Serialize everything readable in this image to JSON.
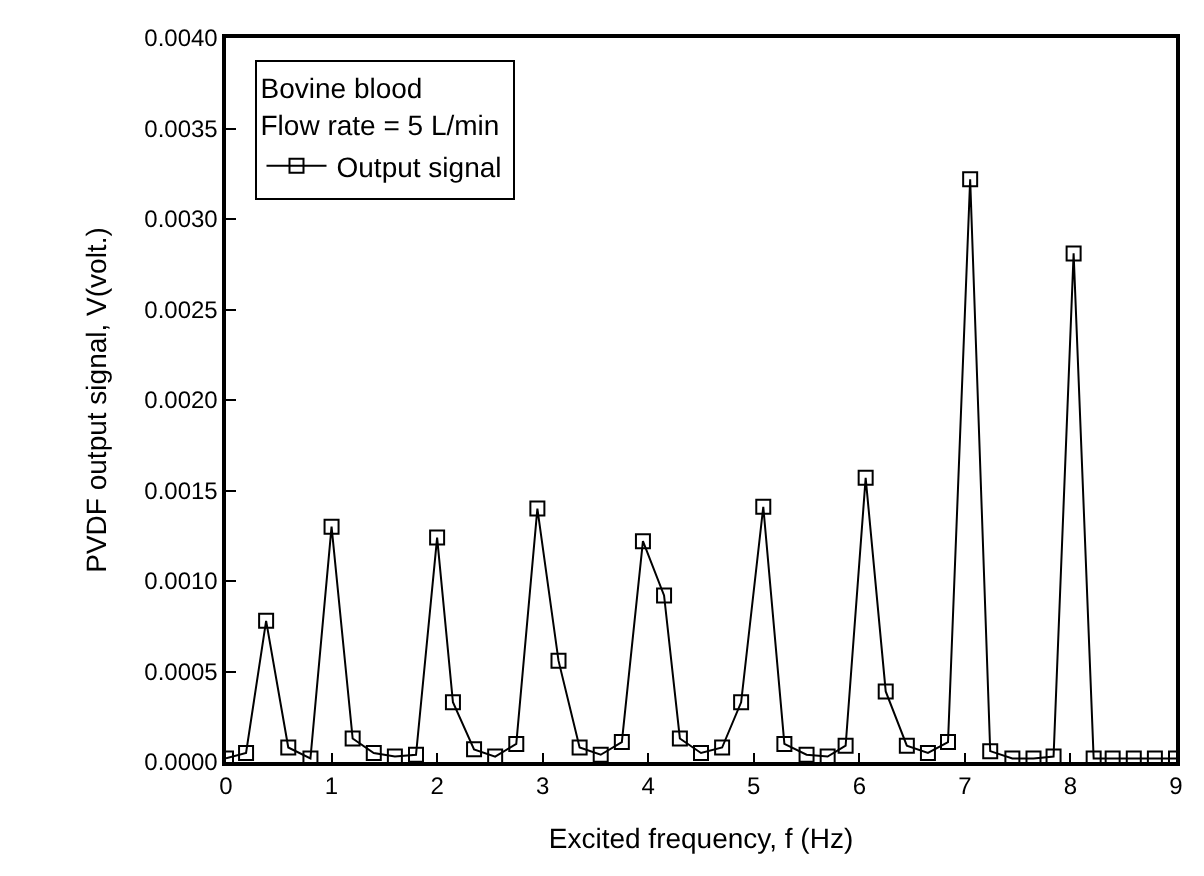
{
  "chart_data": {
    "type": "line",
    "xlabel": "Excited frequency, f (Hz)",
    "ylabel": "PVDF output signal, V(volt.)",
    "legend_title": "Bovine blood\nFlow rate = 5 L/min",
    "x": [
      0,
      0.19,
      0.38,
      0.59,
      0.8,
      1.0,
      1.2,
      1.4,
      1.6,
      1.8,
      2.0,
      2.15,
      2.35,
      2.55,
      2.75,
      2.95,
      3.15,
      3.35,
      3.55,
      3.75,
      3.95,
      4.15,
      4.3,
      4.5,
      4.7,
      4.88,
      5.09,
      5.29,
      5.5,
      5.7,
      5.87,
      6.06,
      6.25,
      6.45,
      6.65,
      6.84,
      7.05,
      7.24,
      7.45,
      7.65,
      7.84,
      8.03,
      8.22,
      8.4,
      8.6,
      8.8,
      9.0
    ],
    "series": [
      {
        "name": "Output signal",
        "color": "#000000",
        "values": [
          2e-05,
          5e-05,
          0.00078,
          8e-05,
          2e-05,
          0.0013,
          0.00013,
          5e-05,
          3e-05,
          4e-05,
          0.00124,
          0.00033,
          7e-05,
          3e-05,
          0.0001,
          0.0014,
          0.00056,
          8e-05,
          4e-05,
          0.00011,
          0.00122,
          0.00092,
          0.00013,
          5e-05,
          8e-05,
          0.00033,
          0.00141,
          0.0001,
          4e-05,
          3e-05,
          9e-05,
          0.00157,
          0.00039,
          9e-05,
          5e-05,
          0.00011,
          0.00322,
          6e-05,
          2e-05,
          2e-05,
          3e-05,
          0.00281,
          2e-05,
          2e-05,
          2e-05,
          2e-05,
          2e-05
        ]
      }
    ],
    "xlim": [
      0,
      9
    ],
    "xticks": [
      0,
      1,
      2,
      3,
      4,
      5,
      6,
      7,
      8,
      9
    ],
    "ylim": [
      0,
      0.004
    ],
    "yticks": [
      {
        "value": 0,
        "label": "0.0000"
      },
      {
        "value": 0.0005,
        "label": "0.0005"
      },
      {
        "value": 0.001,
        "label": "0.0010"
      },
      {
        "value": 0.0015,
        "label": "0.0015"
      },
      {
        "value": 0.002,
        "label": "0.0020"
      },
      {
        "value": 0.0025,
        "label": "0.0025"
      },
      {
        "value": 0.003,
        "label": "0.0030"
      },
      {
        "value": 0.0035,
        "label": "0.0035"
      },
      {
        "value": 0.004,
        "label": "0.0040"
      }
    ],
    "legend": "top left",
    "marker": "square",
    "line_style": "solid"
  }
}
